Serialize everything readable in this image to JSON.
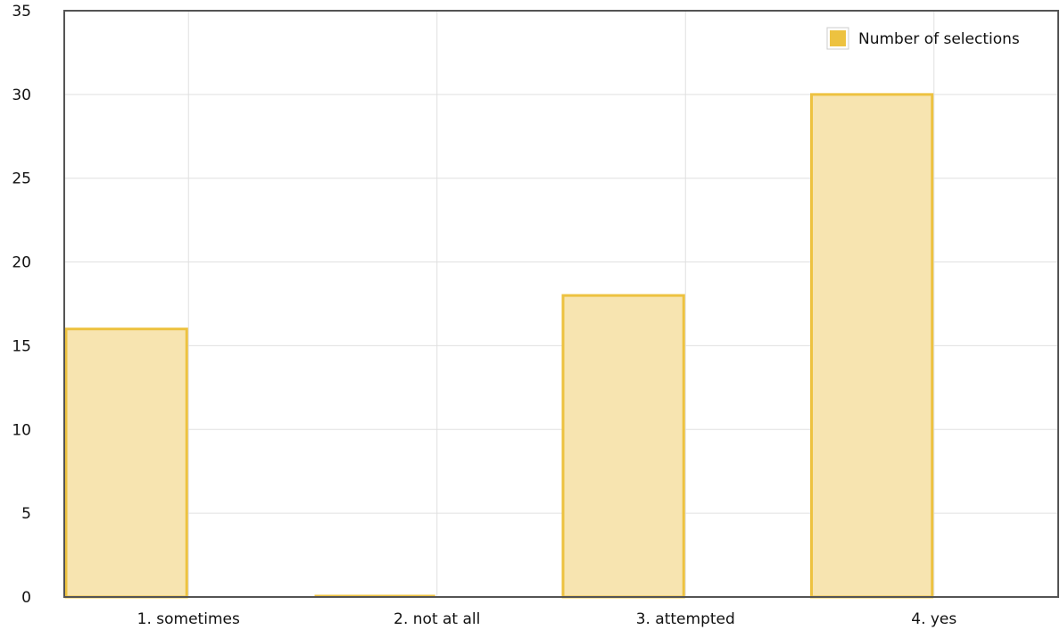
{
  "chart_data": {
    "type": "bar",
    "categories": [
      "1. sometimes",
      "2. not at all",
      "3. attempted",
      "4. yes"
    ],
    "series": [
      {
        "name": "Number of selections",
        "values": [
          16,
          0,
          18,
          30
        ]
      }
    ],
    "ylim": [
      0,
      35
    ],
    "yticks": [
      "0",
      "5",
      "10",
      "15",
      "20",
      "25",
      "30",
      "35"
    ],
    "title": "",
    "xlabel": "",
    "ylabel": "",
    "grid": true,
    "legend_position": "top-right",
    "colors": {
      "bar_fill": "#f7e4b0",
      "bar_stroke": "#edc240",
      "grid": "#e0e0e0",
      "axis": "#545454"
    }
  }
}
